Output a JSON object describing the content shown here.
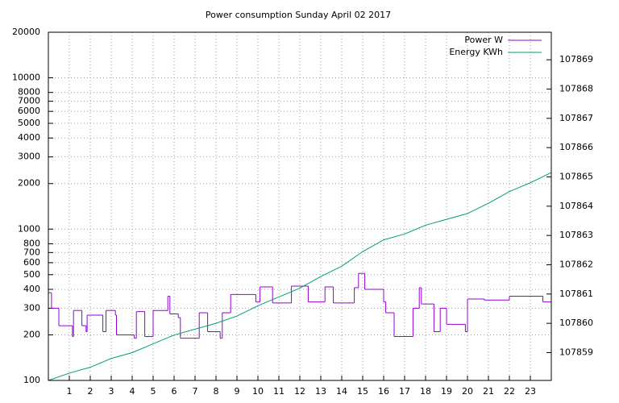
{
  "chart_data": {
    "type": "line",
    "title": "Power consumption Sunday April 02 2017",
    "xlim": [
      0,
      24
    ],
    "xticks": [
      1,
      2,
      3,
      4,
      5,
      6,
      7,
      8,
      9,
      10,
      11,
      12,
      13,
      14,
      15,
      16,
      17,
      18,
      19,
      20,
      21,
      22,
      23
    ],
    "ylim": [
      100,
      20000
    ],
    "yscale": "log",
    "yticks": [
      100,
      200,
      300,
      400,
      500,
      600,
      700,
      800,
      1000,
      2000,
      3000,
      4000,
      5000,
      6000,
      7000,
      8000,
      10000,
      20000
    ],
    "y2lim": [
      107858.05,
      107869.94
    ],
    "y2ticks": [
      107859,
      107860,
      107861,
      107862,
      107863,
      107864,
      107865,
      107866,
      107867,
      107868,
      107869
    ],
    "grid": true,
    "legend": "top-right",
    "series": [
      {
        "name": "Power W",
        "color": "#9400d3",
        "step": true,
        "x": [
          0,
          0.15,
          0.5,
          1.15,
          1.2,
          1.6,
          1.8,
          1.85,
          2.6,
          2.75,
          3.2,
          3.25,
          4.1,
          4.2,
          4.6,
          5.0,
          5.7,
          5.8,
          6.2,
          6.3,
          7.2,
          7.6,
          8.2,
          8.3,
          8.7,
          9.9,
          10.1,
          10.7,
          11.6,
          12.4,
          13.2,
          13.6,
          14.6,
          14.8,
          15.1,
          16.0,
          16.1,
          16.5,
          17.4,
          17.7,
          17.8,
          18.4,
          18.7,
          19.0,
          19.9,
          20.0,
          20.8,
          22.0,
          23.6
        ],
        "values": [
          380,
          300,
          230,
          195,
          290,
          230,
          210,
          270,
          210,
          290,
          270,
          200,
          190,
          285,
          195,
          290,
          360,
          275,
          260,
          190,
          280,
          210,
          190,
          280,
          370,
          330,
          415,
          325,
          420,
          330,
          415,
          325,
          410,
          510,
          400,
          330,
          280,
          195,
          300,
          410,
          320,
          210,
          300,
          235,
          210,
          345,
          340,
          360,
          330
        ]
      },
      {
        "name": "Energy KWh",
        "color": "#009e73",
        "axis": "y2",
        "x": [
          0,
          1,
          2,
          3,
          4,
          5,
          6,
          7,
          8,
          9,
          10,
          11,
          12,
          13,
          14,
          15,
          16,
          17,
          18,
          19,
          20,
          21,
          22,
          23,
          24
        ],
        "values": [
          107858.05,
          107858.3,
          107858.5,
          107858.8,
          107859.0,
          107859.3,
          107859.6,
          107859.8,
          107860.0,
          107860.25,
          107860.6,
          107860.9,
          107861.2,
          107861.6,
          107861.95,
          107862.45,
          107862.85,
          107863.05,
          107863.35,
          107863.55,
          107863.75,
          107864.1,
          107864.5,
          107864.8,
          107865.15
        ]
      }
    ]
  }
}
